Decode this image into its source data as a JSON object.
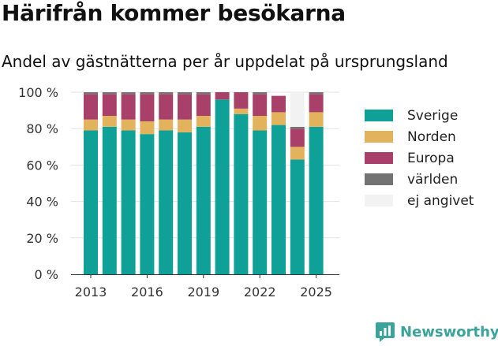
{
  "title": "Härifrån kommer besökarna",
  "subtitle": "Andel av gästnätterna per år uppdelat på ursprungsland",
  "brand": {
    "name": "Newsworthy",
    "icon": "newsworthy-logo-icon"
  },
  "chart_data": {
    "type": "bar",
    "stacked": true,
    "categories": [
      2013,
      2014,
      2015,
      2016,
      2017,
      2018,
      2019,
      2020,
      2021,
      2022,
      2023,
      2024,
      2025
    ],
    "x_ticks": [
      "2013",
      "2016",
      "2019",
      "2022",
      "2025"
    ],
    "y_ticks": [
      "0 %",
      "20 %",
      "40 %",
      "60 %",
      "80 %",
      "100 %"
    ],
    "ylim": [
      0,
      100
    ],
    "grid": true,
    "legend_position": "right",
    "series": [
      {
        "name": "Sverige",
        "color": "#0fa197",
        "values": [
          79,
          81,
          79,
          77,
          79,
          78,
          81,
          96,
          88,
          79,
          82,
          63,
          81
        ]
      },
      {
        "name": "Norden",
        "color": "#e2b35c",
        "values": [
          6,
          6,
          6,
          7,
          6,
          7,
          6,
          0,
          3,
          8,
          7,
          7,
          8
        ]
      },
      {
        "name": "Europa",
        "color": "#a8406a",
        "values": [
          14,
          12,
          14,
          15,
          14,
          14,
          12,
          4,
          9,
          12,
          9,
          10,
          10
        ]
      },
      {
        "name": "världen",
        "color": "#737373",
        "values": [
          1,
          1,
          1,
          1,
          1,
          1,
          1,
          0,
          0,
          1,
          0,
          1,
          1
        ]
      },
      {
        "name": "ej angivet",
        "color": "#f2f2f2",
        "values": [
          0,
          0,
          0,
          0,
          0,
          0,
          0,
          0,
          0,
          0,
          0,
          19,
          0
        ]
      }
    ]
  }
}
